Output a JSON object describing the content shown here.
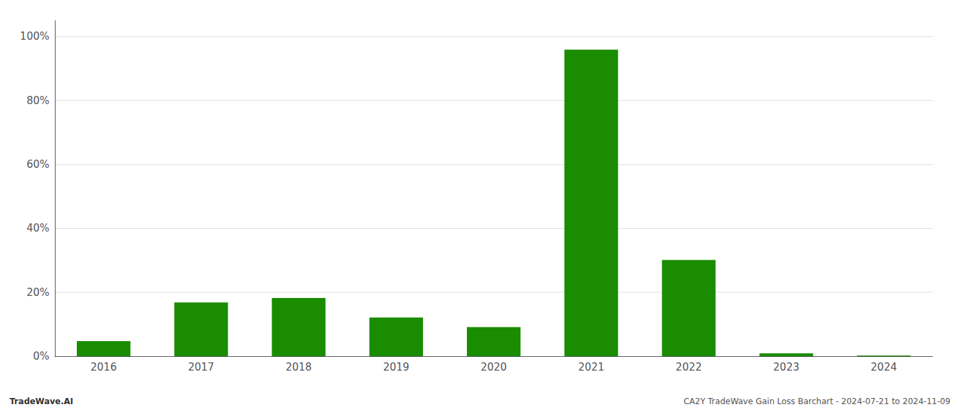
{
  "chart_data": {
    "type": "bar",
    "categories": [
      "2016",
      "2017",
      "2018",
      "2019",
      "2020",
      "2021",
      "2022",
      "2023",
      "2024"
    ],
    "values": [
      0.047,
      0.168,
      0.182,
      0.121,
      0.091,
      0.959,
      0.301,
      0.009,
      0.002
    ],
    "color": "#1a8c00",
    "ylim": [
      0,
      1.05
    ],
    "yticks": [
      {
        "value": 0.0,
        "label": "0%"
      },
      {
        "value": 0.2,
        "label": "20%"
      },
      {
        "value": 0.4,
        "label": "40%"
      },
      {
        "value": 0.6,
        "label": "60%"
      },
      {
        "value": 0.8,
        "label": "80%"
      },
      {
        "value": 1.0,
        "label": "100%"
      }
    ],
    "grid": true,
    "annotations": [
      "TradeWave.AI",
      "CA2Y TradeWave Gain Loss Barchart - 2024-07-21 to 2024-11-09"
    ]
  }
}
